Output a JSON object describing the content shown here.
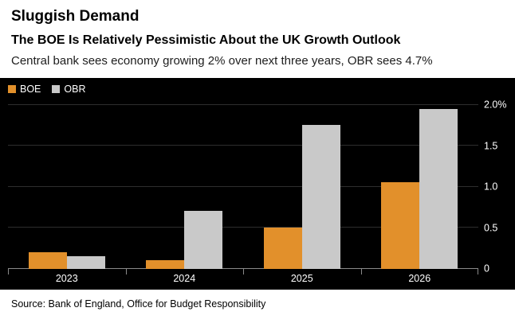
{
  "header": {
    "kicker": "Sluggish Demand",
    "title": "The BOE Is Relatively Pessimistic About the UK Growth Outlook",
    "subtitle": "Central bank sees economy growing 2% over next three years, OBR sees 4.7%"
  },
  "chart_data": {
    "type": "bar",
    "categories": [
      "2023",
      "2024",
      "2025",
      "2026"
    ],
    "series": [
      {
        "name": "BOE",
        "color": "#E2902B",
        "values": [
          0.2,
          0.1,
          0.5,
          1.05
        ]
      },
      {
        "name": "OBR",
        "color": "#C9C9C9",
        "values": [
          0.15,
          0.7,
          1.75,
          1.95
        ]
      }
    ],
    "unit": "%",
    "ylim": [
      0,
      2.0
    ],
    "yticks": [
      {
        "value": 0,
        "label": "0"
      },
      {
        "value": 0.5,
        "label": "0.5"
      },
      {
        "value": 1.0,
        "label": "1.0"
      },
      {
        "value": 1.5,
        "label": "1.5"
      },
      {
        "value": 2.0,
        "label": "2.0%"
      }
    ],
    "grid": true,
    "legend_position": "top-left",
    "background": "#000000"
  },
  "footer": {
    "source": "Source: Bank of England, Office for Budget Responsibility"
  }
}
